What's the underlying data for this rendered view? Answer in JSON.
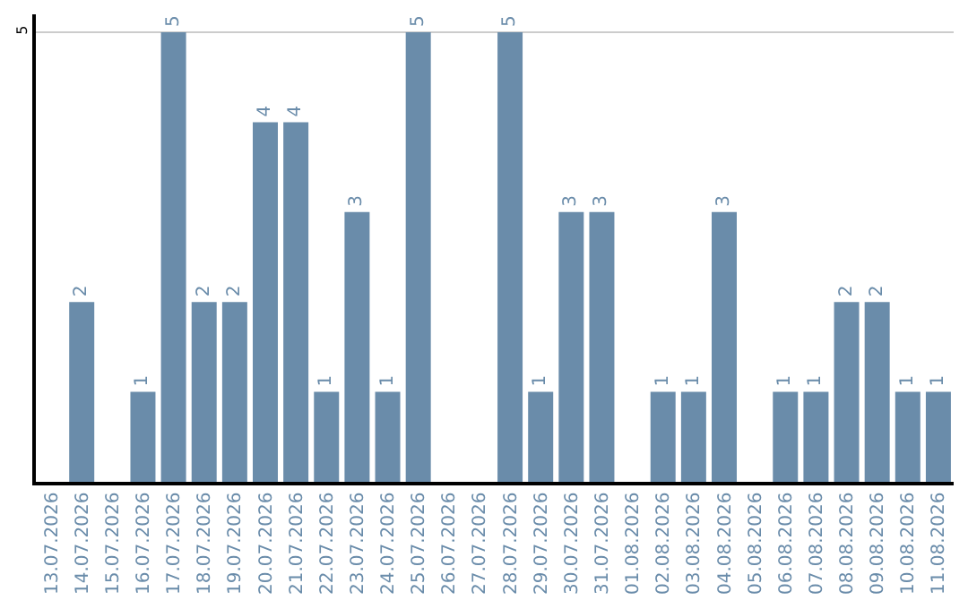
{
  "chart_data": {
    "type": "bar",
    "categories": [
      "13.07.2026",
      "14.07.2026",
      "15.07.2026",
      "16.07.2026",
      "17.07.2026",
      "18.07.2026",
      "19.07.2026",
      "20.07.2026",
      "21.07.2026",
      "22.07.2026",
      "23.07.2026",
      "24.07.2026",
      "25.07.2026",
      "26.07.2026",
      "27.07.2026",
      "28.07.2026",
      "29.07.2026",
      "30.07.2026",
      "31.07.2026",
      "01.08.2026",
      "02.08.2026",
      "03.08.2026",
      "04.08.2026",
      "05.08.2026",
      "06.08.2026",
      "07.08.2026",
      "08.08.2026",
      "09.08.2026",
      "10.08.2026",
      "11.08.2026"
    ],
    "values": [
      0,
      2,
      0,
      1,
      5,
      2,
      2,
      4,
      4,
      1,
      3,
      1,
      5,
      0,
      0,
      5,
      1,
      3,
      3,
      0,
      1,
      1,
      3,
      0,
      1,
      1,
      2,
      2,
      1,
      1
    ],
    "value_labels": [
      null,
      "2",
      null,
      "1",
      "5",
      "2",
      "2",
      "4",
      "4",
      "1",
      "3",
      "1",
      "5",
      null,
      null,
      "5",
      "1",
      "3",
      "3",
      null,
      "1",
      "1",
      "3",
      null,
      "1",
      "1",
      "2",
      "2",
      "1",
      "1"
    ],
    "color": "#6a8caa",
    "ylim": [
      0,
      5.2
    ],
    "yticks": [
      5
    ],
    "grid": "y",
    "legend": false
  }
}
